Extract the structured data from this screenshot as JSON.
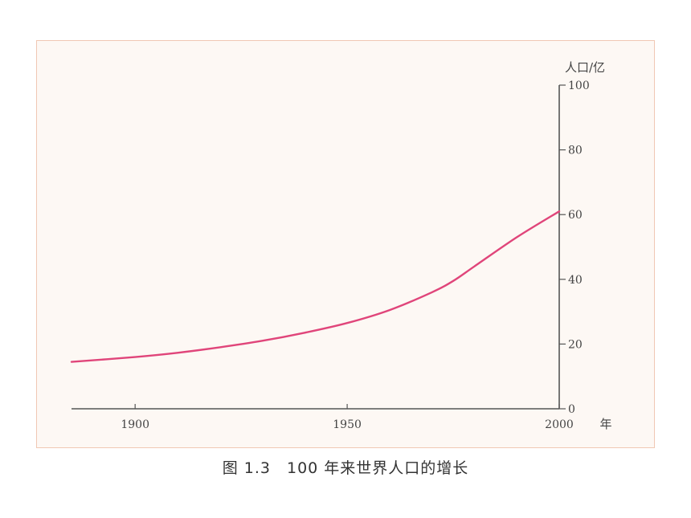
{
  "chart_data": {
    "type": "line",
    "xlabel": "年",
    "ylabel": "人口/亿",
    "xlim": [
      1885,
      2000
    ],
    "ylim": [
      0,
      100
    ],
    "x_ticks": [
      1900,
      1950,
      2000
    ],
    "y_ticks": [
      0,
      20,
      40,
      60,
      80,
      100
    ],
    "y_axis_position": "right",
    "grid": false,
    "series": [
      {
        "color": "#e0457a",
        "x": [
          1885,
          1900,
          1910,
          1920,
          1930,
          1940,
          1950,
          1960,
          1970,
          1975,
          1980,
          1990,
          2000
        ],
        "y": [
          14.5,
          16,
          17.3,
          19,
          21,
          23.5,
          26.5,
          30.5,
          36,
          39.5,
          44,
          53,
          61
        ]
      }
    ]
  },
  "caption": "图 1.3　100 年来世界人口的增长"
}
